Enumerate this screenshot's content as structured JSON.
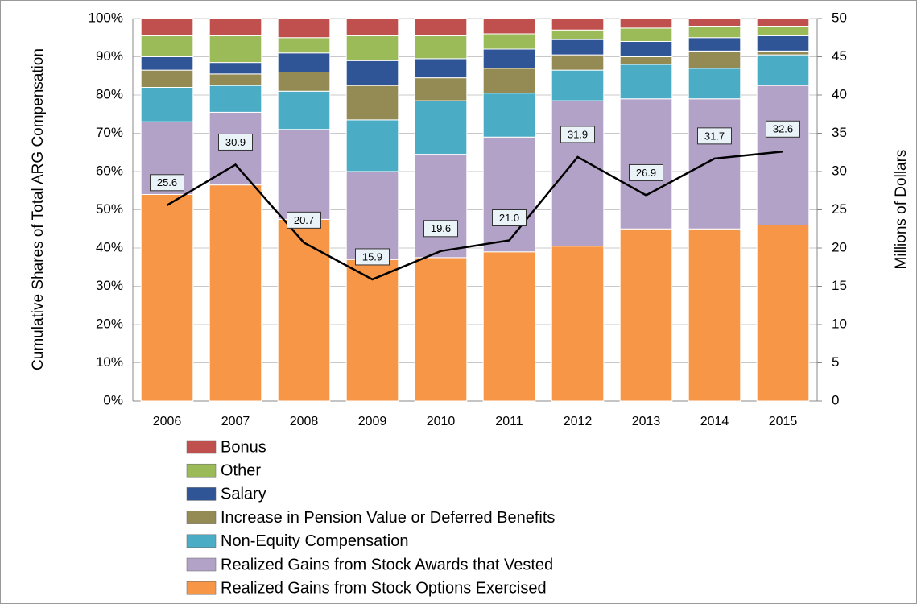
{
  "chart_data": {
    "type": "bar",
    "stacked": true,
    "categories": [
      "2006",
      "2007",
      "2008",
      "2009",
      "2010",
      "2011",
      "2012",
      "2013",
      "2014",
      "2015"
    ],
    "ylabel": "Cumulative Shares of Total ARG Compensation",
    "y2label": "Millions of Dollars",
    "ylim": [
      0,
      100
    ],
    "yticks": [
      {
        "value": 0,
        "label": "0%"
      },
      {
        "value": 10,
        "label": "10%"
      },
      {
        "value": 20,
        "label": "20%"
      },
      {
        "value": 30,
        "label": "30%"
      },
      {
        "value": 40,
        "label": "40%"
      },
      {
        "value": 50,
        "label": "50%"
      },
      {
        "value": 60,
        "label": "60%"
      },
      {
        "value": 70,
        "label": "70%"
      },
      {
        "value": 80,
        "label": "80%"
      },
      {
        "value": 90,
        "label": "90%"
      },
      {
        "value": 100,
        "label": "100%"
      }
    ],
    "y2lim": [
      0,
      50
    ],
    "y2ticks": [
      0,
      5,
      10,
      15,
      20,
      25,
      30,
      35,
      40,
      45,
      50
    ],
    "grid": true,
    "series": [
      {
        "name": "Bonus",
        "color": "#c0504d",
        "values": [
          4.5,
          4.5,
          5,
          4.5,
          4.5,
          4,
          3,
          2.5,
          2,
          2
        ]
      },
      {
        "name": "Other",
        "color": "#9bbb59",
        "values": [
          5.5,
          7,
          4,
          6.5,
          6,
          4,
          2.5,
          3.5,
          3,
          2.5
        ]
      },
      {
        "name": "Salary",
        "color": "#2f5597",
        "values": [
          3.5,
          3,
          5,
          6.5,
          5,
          5,
          4,
          4,
          3.5,
          4
        ]
      },
      {
        "name": "Increase in Pension Value or Deferred Benefits",
        "color": "#948a54",
        "values": [
          4.5,
          3,
          5,
          9,
          6,
          6.5,
          4,
          2,
          4.5,
          1
        ]
      },
      {
        "name": "Non-Equity Compensation",
        "color": "#4bacc6",
        "values": [
          9,
          7,
          10,
          13.5,
          14,
          11.5,
          8,
          9,
          8,
          8
        ]
      },
      {
        "name": "Realized Gains from Stock Awards that Vested",
        "color": "#b3a2c7",
        "values": [
          19,
          19,
          23.5,
          23,
          27,
          30,
          38,
          34,
          34,
          36.5
        ]
      },
      {
        "name": "Realized Gains from Stock Options Exercised",
        "color": "#f79646",
        "values": [
          54,
          56.5,
          47.5,
          37,
          37.5,
          39,
          40.5,
          45,
          45,
          46
        ]
      }
    ],
    "line": {
      "type": "line",
      "axis": "y2",
      "color": "#000000",
      "values": [
        25.6,
        30.9,
        20.7,
        15.9,
        19.6,
        21.0,
        31.9,
        26.9,
        31.7,
        32.6
      ],
      "value_labels": [
        "25.6",
        "30.9",
        "20.7",
        "15.9",
        "19.6",
        "21.0",
        "31.9",
        "26.9",
        "31.7",
        "32.6"
      ]
    }
  }
}
